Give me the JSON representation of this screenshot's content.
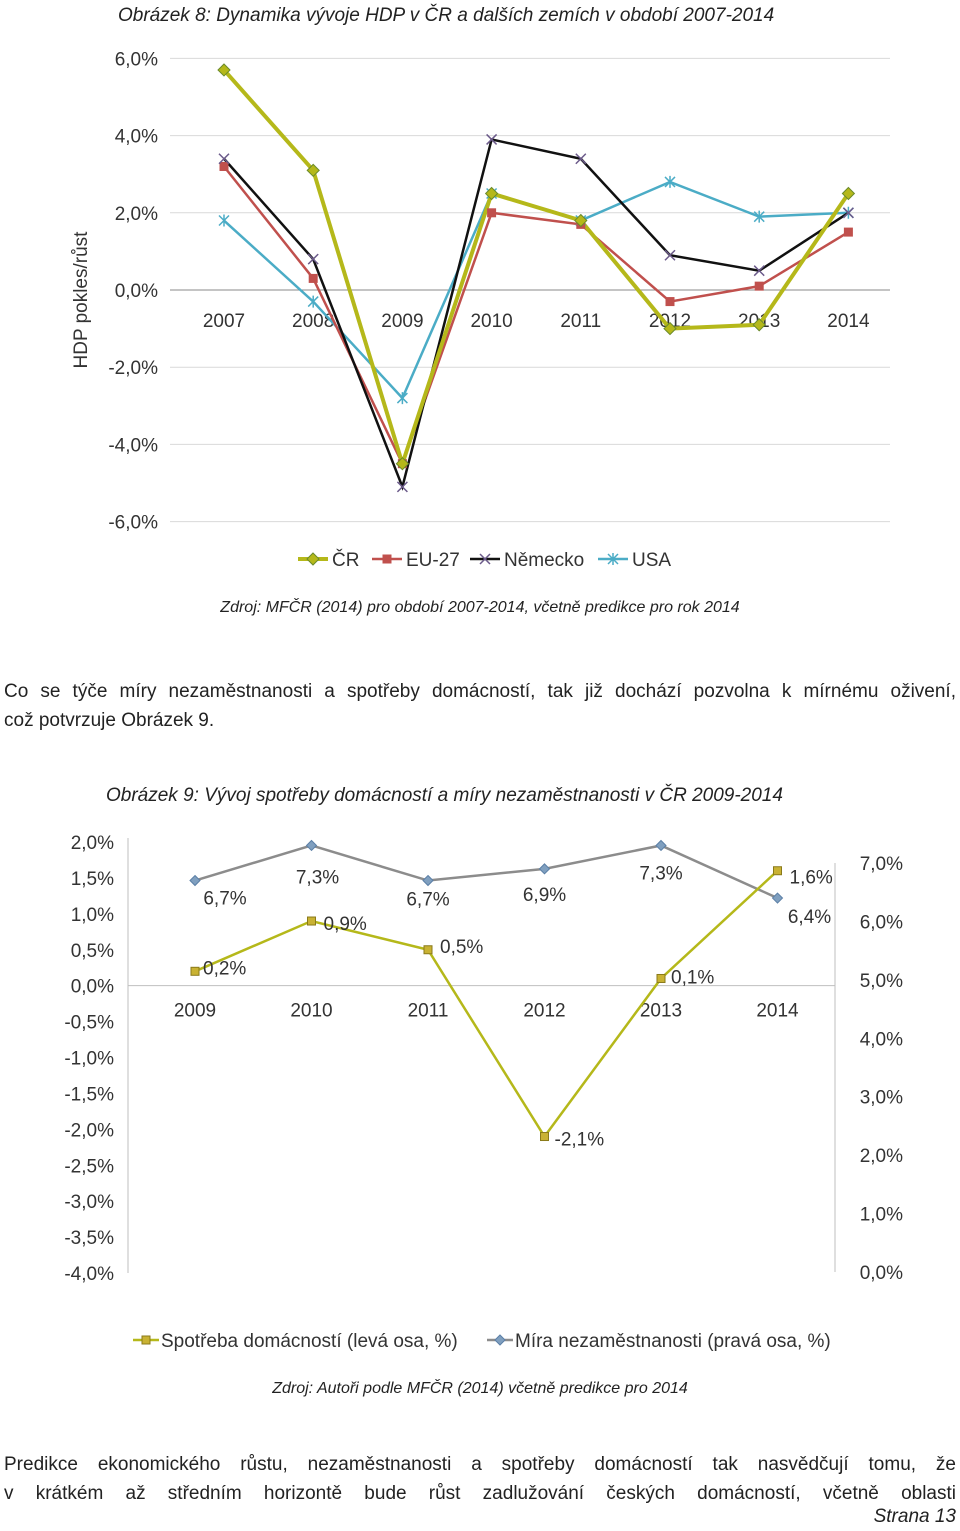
{
  "figure8": {
    "caption": "Obrázek 8: Dynamika vývoje HDP v ČR a dalších zemích v období 2007-2014",
    "source": "Zdroj: MFČR (2014) pro období 2007-2014, včetně predikce pro rok 2014"
  },
  "para1": {
    "line1": "Co se týče míry nezaměstnanosti a spotřeby domácností, tak již dochází pozvolna k mírnému oživení,",
    "line2": "což potvrzuje Obrázek 9."
  },
  "figure9": {
    "caption": "Obrázek 9: Vývoj spotřeby domácností a míry nezaměstnanosti v ČR 2009-2014",
    "source": "Zdroj: Autoři podle MFČR (2014) včetně predikce pro 2014"
  },
  "para2": {
    "line1": "Predikce ekonomického růstu, nezaměstnanosti a spotřeby domácností tak nasvědčují tomu, že",
    "line2": "v krátkém až středním horizontě bude růst zadlužování českých domácností, včetně oblasti"
  },
  "page_number": "Strana 13",
  "chart_data": [
    {
      "type": "line",
      "ylabel": "HDP pokles/růst",
      "xlabel": "",
      "categories": [
        "2007",
        "2008",
        "2009",
        "2010",
        "2011",
        "2012",
        "2013",
        "2014"
      ],
      "ylim": [
        -6,
        6
      ],
      "yticks": [
        6,
        4,
        2,
        0,
        -2,
        -4,
        -6
      ],
      "ytick_labels": [
        "6,0%",
        "4,0%",
        "2,0%",
        "0,0%",
        "-2,0%",
        "-4,0%",
        "-6,0%"
      ],
      "series": [
        {
          "name": "ČR",
          "color": "#b5b81a",
          "marker": "diamond",
          "values": [
            5.7,
            3.1,
            -4.5,
            2.5,
            1.8,
            -1.0,
            -0.9,
            2.5
          ]
        },
        {
          "name": "EU-27",
          "color": "#c0504d",
          "marker": "square",
          "values": [
            3.2,
            0.3,
            -4.5,
            2.0,
            1.7,
            -0.3,
            0.1,
            1.5
          ]
        },
        {
          "name": "Německo",
          "color": "#111111",
          "marker": "x",
          "values": [
            3.4,
            0.8,
            -5.1,
            3.9,
            3.4,
            0.9,
            0.5,
            2.0
          ]
        },
        {
          "name": "USA",
          "color": "#4bacc6",
          "marker": "star",
          "values": [
            1.8,
            -0.3,
            -2.8,
            2.5,
            1.8,
            2.8,
            1.9,
            2.0
          ]
        }
      ],
      "legend": "bottom"
    },
    {
      "type": "line",
      "categories": [
        "2009",
        "2010",
        "2011",
        "2012",
        "2013",
        "2014"
      ],
      "left_axis": {
        "ylim": [
          -4,
          2
        ],
        "tick_labels": [
          "2,0%",
          "1,5%",
          "1,0%",
          "0,5%",
          "0,0%",
          "-0,5%",
          "-1,0%",
          "-1,5%",
          "-2,0%",
          "-2,5%",
          "-3,0%",
          "-3,5%",
          "-4,0%"
        ]
      },
      "right_axis": {
        "ylim": [
          0,
          7
        ],
        "tick_labels": [
          "7,0%",
          "6,0%",
          "5,0%",
          "4,0%",
          "3,0%",
          "2,0%",
          "1,0%",
          "0,0%"
        ]
      },
      "series": [
        {
          "name": "Spotřeba domácností (levá osa, %)",
          "axis": "left",
          "color": "#b5b81a",
          "marker": "square",
          "values": [
            0.2,
            0.9,
            0.5,
            -2.1,
            0.1,
            1.6
          ],
          "labels": [
            "0,2%",
            "0,9%",
            "0,5%",
            "-2,1%",
            "0,1%",
            "1,6%"
          ]
        },
        {
          "name": "Míra nezaměstnanosti (pravá osa, %)",
          "axis": "right",
          "color": "#8c8c8c",
          "marker": "diamond",
          "values": [
            6.7,
            7.3,
            6.7,
            6.9,
            7.3,
            6.4
          ],
          "labels": [
            "6,7%",
            "7,3%",
            "6,7%",
            "6,9%",
            "7,3%",
            "6,4%"
          ]
        }
      ],
      "legend": "bottom"
    }
  ]
}
